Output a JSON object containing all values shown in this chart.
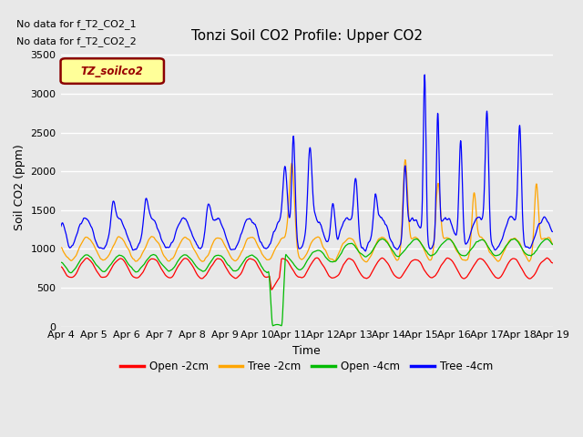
{
  "title": "Tonzi Soil CO2 Profile: Upper CO2",
  "ylabel": "Soil CO2 (ppm)",
  "xlabel": "Time",
  "no_data_text1": "No data for f_T2_CO2_1",
  "no_data_text2": "No data for f_T2_CO2_2",
  "legend_label": "TZ_soilco2",
  "ylim": [
    0,
    3600
  ],
  "yticks": [
    0,
    500,
    1000,
    1500,
    2000,
    2500,
    3000,
    3500
  ],
  "xtick_labels": [
    "Apr 4",
    "Apr 5",
    "Apr 6",
    "Apr 7",
    "Apr 8",
    "Apr 9",
    "Apr 10",
    "Apr 11",
    "Apr 12",
    "Apr 13",
    "Apr 14",
    "Apr 15",
    "Apr 16",
    "Apr 17",
    "Apr 18",
    "Apr 19"
  ],
  "line_colors": {
    "open2": "#ff0000",
    "tree2": "#ffa500",
    "open4": "#00bb00",
    "tree4": "#0000ff"
  },
  "legend_entries": [
    "Open -2cm",
    "Tree -2cm",
    "Open -4cm",
    "Tree -4cm"
  ],
  "legend_colors": [
    "#ff0000",
    "#ffa500",
    "#00bb00",
    "#0000ff"
  ],
  "plot_bg": "#e8e8e8",
  "grid_color": "#ffffff",
  "fig_bg": "#e8e8e8"
}
